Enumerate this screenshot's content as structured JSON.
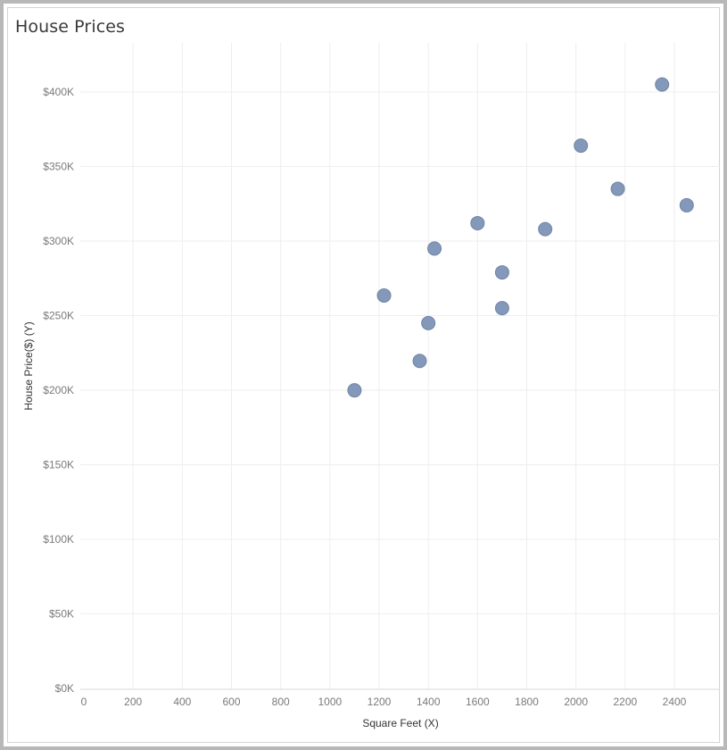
{
  "chart_data": {
    "type": "scatter",
    "title": "House Prices",
    "xlabel": "Square Feet (X)",
    "ylabel": "House Price($) (Y)",
    "xlim": [
      0,
      2550
    ],
    "ylim": [
      0,
      420000
    ],
    "x_ticks": [
      0,
      200,
      400,
      600,
      800,
      1000,
      1200,
      1400,
      1600,
      1800,
      2000,
      2200,
      2400
    ],
    "x_tick_labels": [
      "0",
      "200",
      "400",
      "600",
      "800",
      "1000",
      "1200",
      "1400",
      "1600",
      "1800",
      "2000",
      "2200",
      "2400"
    ],
    "y_ticks": [
      0,
      50000,
      100000,
      150000,
      200000,
      250000,
      300000,
      350000,
      400000
    ],
    "y_tick_labels": [
      "$0K",
      "$50K",
      "$100K",
      "$150K",
      "$200K",
      "$250K",
      "$300K",
      "$350K",
      "$400K"
    ],
    "grid": true,
    "marker_color": "#8499b9",
    "marker_edge_color": "#6f84a6",
    "points": [
      {
        "x": 1100,
        "y": 199900
      },
      {
        "x": 1220,
        "y": 263500
      },
      {
        "x": 1365,
        "y": 219600
      },
      {
        "x": 1400,
        "y": 245000
      },
      {
        "x": 1425,
        "y": 295000
      },
      {
        "x": 1600,
        "y": 312000
      },
      {
        "x": 1700,
        "y": 279000
      },
      {
        "x": 1700,
        "y": 255000
      },
      {
        "x": 1875,
        "y": 308000
      },
      {
        "x": 2020,
        "y": 364000
      },
      {
        "x": 2170,
        "y": 335000
      },
      {
        "x": 2350,
        "y": 405000
      },
      {
        "x": 2450,
        "y": 324000
      }
    ]
  }
}
